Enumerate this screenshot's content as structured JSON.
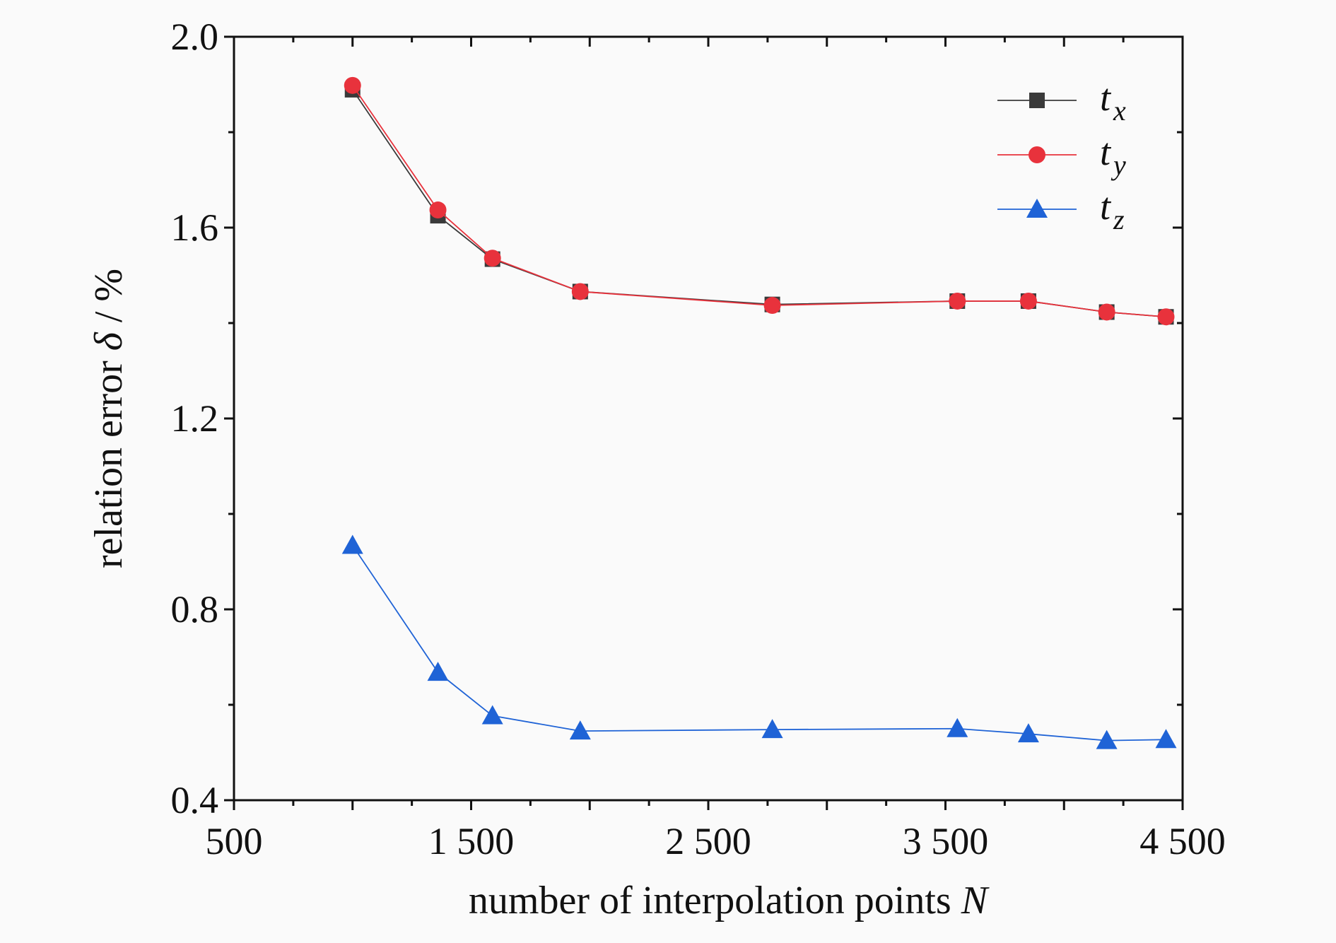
{
  "chart_data": {
    "type": "line",
    "xlabel": "number of interpolation points",
    "xlabel_var": "N",
    "ylabel": "relation error",
    "ylabel_var": "δ",
    "ylabel_unit": " / %",
    "xlim": [
      500,
      4500
    ],
    "ylim": [
      0.4,
      2.0
    ],
    "xticks": [
      500,
      1500,
      2500,
      3500,
      4500
    ],
    "xtick_labels": [
      "500",
      "1 500",
      "2 500",
      "3 500",
      "4 500"
    ],
    "yticks": [
      0.4,
      0.8,
      1.2,
      1.6,
      2.0
    ],
    "ytick_labels": [
      "0.4",
      "0.8",
      "1.2",
      "1.6",
      "2.0"
    ],
    "grid": false,
    "legend_position": "top-right",
    "x": [
      1000,
      1360,
      1590,
      1960,
      2770,
      3550,
      3850,
      4180,
      4430
    ],
    "series": [
      {
        "name": "t",
        "sub": "x",
        "color": "#3a3a3a",
        "marker": "square",
        "values": [
          1.889,
          1.625,
          1.534,
          1.466,
          1.439,
          1.446,
          1.446,
          1.423,
          1.413
        ]
      },
      {
        "name": "t",
        "sub": "y",
        "color": "#e8323c",
        "marker": "circle",
        "values": [
          1.898,
          1.637,
          1.536,
          1.466,
          1.437,
          1.446,
          1.446,
          1.423,
          1.413
        ]
      },
      {
        "name": "t",
        "sub": "z",
        "color": "#1f63d6",
        "marker": "triangle",
        "values": [
          0.934,
          0.668,
          0.577,
          0.545,
          0.548,
          0.55,
          0.539,
          0.525,
          0.527
        ]
      }
    ]
  }
}
